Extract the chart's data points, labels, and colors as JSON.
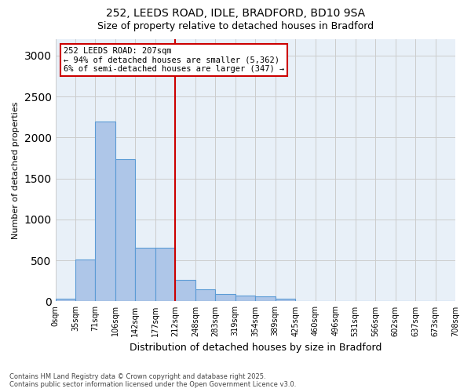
{
  "title_line1": "252, LEEDS ROAD, IDLE, BRADFORD, BD10 9SA",
  "title_line2": "Size of property relative to detached houses in Bradford",
  "xlabel": "Distribution of detached houses by size in Bradford",
  "ylabel": "Number of detached properties",
  "footnote": "Contains HM Land Registry data © Crown copyright and database right 2025.\nContains public sector information licensed under the Open Government Licence v3.0.",
  "bar_color": "#aec6e8",
  "bar_edge_color": "#5b9bd5",
  "vline_color": "#cc0000",
  "vline_x": 5.5,
  "annotation_text": "252 LEEDS ROAD: 207sqm\n← 94% of detached houses are smaller (5,362)\n6% of semi-detached houses are larger (347) →",
  "annotation_box_color": "#cc0000",
  "tick_labels": [
    "0sqm",
    "35sqm",
    "71sqm",
    "106sqm",
    "142sqm",
    "177sqm",
    "212sqm",
    "248sqm",
    "283sqm",
    "319sqm",
    "354sqm",
    "389sqm",
    "425sqm",
    "460sqm",
    "496sqm",
    "531sqm",
    "566sqm",
    "602sqm",
    "637sqm",
    "673sqm",
    "708sqm"
  ],
  "values": [
    30,
    510,
    2200,
    1740,
    650,
    650,
    260,
    150,
    90,
    70,
    60,
    30,
    0,
    0,
    0,
    0,
    0,
    0,
    0,
    0
  ],
  "ylim": [
    0,
    3200
  ],
  "yticks": [
    0,
    500,
    1000,
    1500,
    2000,
    2500,
    3000
  ],
  "figsize": [
    6.0,
    5.0
  ],
  "dpi": 100,
  "background_color": "#ffffff",
  "plot_bg_color": "#e8f0f8",
  "grid_color": "#cccccc"
}
